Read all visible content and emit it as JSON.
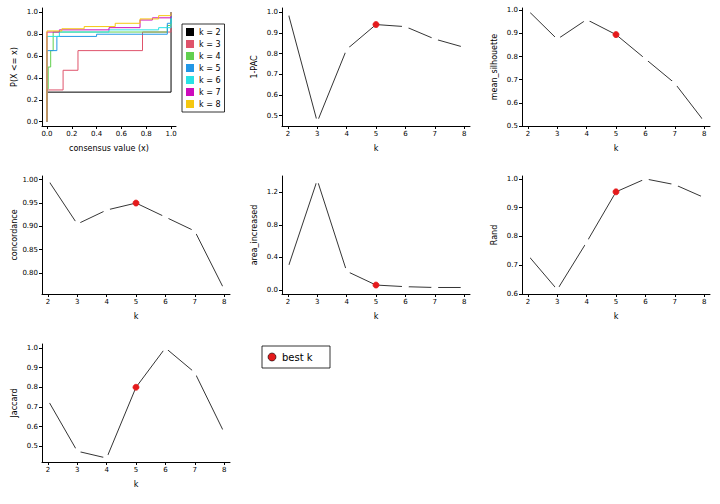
{
  "chart_data": [
    {
      "type": "line",
      "x_label": "consensus value (x)",
      "y_label": "P(X <= x)",
      "line_style": "step",
      "legend": "right",
      "xlim": [
        -0.04,
        1.04
      ],
      "ylim": [
        -0.04,
        1.04
      ],
      "xticks": [
        {
          "value": 0,
          "label": "0.0"
        },
        0.2,
        0.4,
        0.6,
        0.8,
        {
          "value": 1,
          "label": "1.0"
        }
      ],
      "yticks": [
        {
          "value": 0,
          "label": "0.0"
        },
        0.2,
        0.4,
        0.6,
        0.8,
        {
          "value": 1,
          "label": "1.0"
        }
      ],
      "series": [
        {
          "name": "k = 2",
          "color": "#000000",
          "x": [
            0,
            0,
            1,
            1
          ],
          "values": [
            0,
            0.27,
            0.27,
            1
          ]
        },
        {
          "name": "k = 3",
          "color": "#df536b",
          "x": [
            0,
            0,
            0.13,
            0.25,
            0.77,
            1
          ],
          "values": [
            0,
            0.29,
            0.47,
            0.65,
            0.82,
            1
          ]
        },
        {
          "name": "k = 4",
          "color": "#61d04f",
          "x": [
            0,
            0,
            0.01,
            0.03,
            0.05,
            0.97,
            1
          ],
          "values": [
            0,
            0.3,
            0.5,
            0.65,
            0.82,
            0.88,
            1
          ]
        },
        {
          "name": "k = 5",
          "color": "#2297e6",
          "x": [
            0,
            0,
            0.08,
            0.4,
            0.97,
            1
          ],
          "values": [
            0,
            0.65,
            0.78,
            0.8,
            0.9,
            1
          ]
        },
        {
          "name": "k = 6",
          "color": "#28e2e5",
          "x": [
            0,
            0,
            0.1,
            0.5,
            0.9,
            1
          ],
          "values": [
            0,
            0.78,
            0.82,
            0.84,
            0.86,
            1
          ]
        },
        {
          "name": "k = 7",
          "color": "#cd0bbc",
          "x": [
            0,
            0,
            0.1,
            0.5,
            0.75,
            0.85,
            1
          ],
          "values": [
            0,
            0.82,
            0.84,
            0.86,
            0.93,
            0.95,
            1
          ]
        },
        {
          "name": "k = 8",
          "color": "#f5c710",
          "x": [
            0,
            0,
            0.12,
            0.3,
            0.55,
            0.75,
            0.9,
            1
          ],
          "values": [
            0,
            0.83,
            0.85,
            0.87,
            0.9,
            0.94,
            0.97,
            1
          ]
        }
      ]
    },
    {
      "type": "line",
      "x_label": "k",
      "y_label": "1-PAC",
      "marker": "circle",
      "xlim": [
        1.8,
        8.2
      ],
      "ylim": [
        0.45,
        1.02
      ],
      "xticks": [
        2,
        3,
        4,
        5,
        6,
        7,
        8
      ],
      "yticks": [
        0.5,
        0.6,
        0.7,
        0.8,
        0.9,
        {
          "value": 1,
          "label": "1.0"
        }
      ],
      "x": [
        2,
        3,
        4,
        5,
        6,
        7,
        8
      ],
      "values": [
        1.0,
        0.47,
        0.82,
        0.94,
        0.93,
        0.87,
        0.83
      ],
      "colors": [
        "#000000",
        "#000000",
        "#000000",
        "#e41a1c",
        "#000000",
        "#000000",
        "#000000"
      ]
    },
    {
      "type": "line",
      "x_label": "k",
      "y_label": "mean_silhouette",
      "marker": "circle",
      "xlim": [
        1.8,
        8.2
      ],
      "ylim": [
        0.5,
        1.01
      ],
      "xticks": [
        2,
        3,
        4,
        5,
        6,
        7,
        8
      ],
      "yticks": [
        0.5,
        0.6,
        0.7,
        0.8,
        0.9,
        {
          "value": 1,
          "label": "1.0"
        }
      ],
      "x": [
        2,
        3,
        4,
        5,
        6,
        7,
        8
      ],
      "values": [
        1.0,
        0.875,
        0.96,
        0.895,
        0.79,
        0.685,
        0.52
      ],
      "colors": [
        "#000000",
        "#000000",
        "#000000",
        "#e41a1c",
        "#000000",
        "#000000",
        "#000000"
      ]
    },
    {
      "type": "line",
      "x_label": "k",
      "y_label": "concordance",
      "marker": "circle",
      "xlim": [
        1.8,
        8.2
      ],
      "ylim": [
        0.755,
        1.008
      ],
      "xticks": [
        2,
        3,
        4,
        5,
        6,
        7,
        8
      ],
      "yticks": [
        {
          "value": 0.8,
          "label": "0.80"
        },
        0.85,
        {
          "value": 0.9,
          "label": "0.90"
        },
        0.95,
        {
          "value": 1,
          "label": "1.00"
        }
      ],
      "x": [
        2,
        3,
        4,
        5,
        6,
        7,
        8
      ],
      "values": [
        1.0,
        0.905,
        0.935,
        0.95,
        0.92,
        0.89,
        0.765
      ],
      "colors": [
        "#000000",
        "#000000",
        "#000000",
        "#e41a1c",
        "#000000",
        "#000000",
        "#000000"
      ]
    },
    {
      "type": "line",
      "x_label": "k",
      "y_label": "area_increased",
      "marker": "circle",
      "xlim": [
        1.8,
        8.2
      ],
      "ylim": [
        -0.05,
        1.4
      ],
      "xticks": [
        2,
        3,
        4,
        5,
        6,
        7,
        8
      ],
      "yticks": [
        {
          "value": 0,
          "label": "0.0"
        },
        0.4,
        0.8,
        1.2
      ],
      "x": [
        2,
        3,
        4,
        5,
        6,
        7,
        8
      ],
      "values": [
        0.27,
        1.35,
        0.23,
        0.06,
        0.04,
        0.03,
        0.03
      ],
      "colors": [
        "#000000",
        "#000000",
        "#000000",
        "#e41a1c",
        "#000000",
        "#000000",
        "#000000"
      ]
    },
    {
      "type": "line",
      "x_label": "k",
      "y_label": "Rand",
      "marker": "circle",
      "xlim": [
        1.8,
        8.2
      ],
      "ylim": [
        0.6,
        1.01
      ],
      "xticks": [
        2,
        3,
        4,
        5,
        6,
        7,
        8
      ],
      "yticks": [
        0.6,
        0.7,
        0.8,
        0.9,
        {
          "value": 1,
          "label": "1.0"
        }
      ],
      "x": [
        2,
        3,
        4,
        5,
        6,
        7,
        8
      ],
      "values": [
        0.735,
        0.615,
        0.78,
        0.955,
        1.0,
        0.98,
        0.935
      ],
      "colors": [
        "#000000",
        "#000000",
        "#000000",
        "#e41a1c",
        "#000000",
        "#000000",
        "#000000"
      ]
    },
    {
      "type": "line",
      "x_label": "k",
      "y_label": "Jaccard",
      "marker": "circle",
      "xlim": [
        1.8,
        8.2
      ],
      "ylim": [
        0.42,
        1.02
      ],
      "xticks": [
        2,
        3,
        4,
        5,
        6,
        7,
        8
      ],
      "yticks": [
        0.5,
        0.6,
        0.7,
        0.8,
        0.9,
        {
          "value": 1,
          "label": "1.0"
        }
      ],
      "x": [
        2,
        3,
        4,
        5,
        6,
        7,
        8
      ],
      "values": [
        0.735,
        0.475,
        0.44,
        0.8,
        1.0,
        0.875,
        0.57
      ],
      "colors": [
        "#000000",
        "#000000",
        "#000000",
        "#e41a1c",
        "#000000",
        "#000000",
        "#000000"
      ]
    },
    {
      "type": "legend",
      "series": [
        {
          "name": "best k",
          "color": "#e41a1c",
          "marker": "circle"
        }
      ]
    }
  ]
}
